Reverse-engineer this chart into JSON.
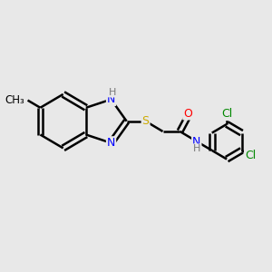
{
  "background_color": "#e8e8e8",
  "bond_color": "#000000",
  "bond_width": 1.8,
  "atom_colors": {
    "N": "#0000ff",
    "H": "#777777",
    "S": "#ccaa00",
    "O": "#ff0000",
    "Cl": "#008800",
    "C": "#000000",
    "CH3": "#000000"
  },
  "font_size": 9,
  "fig_bg": "#e8e8e8"
}
